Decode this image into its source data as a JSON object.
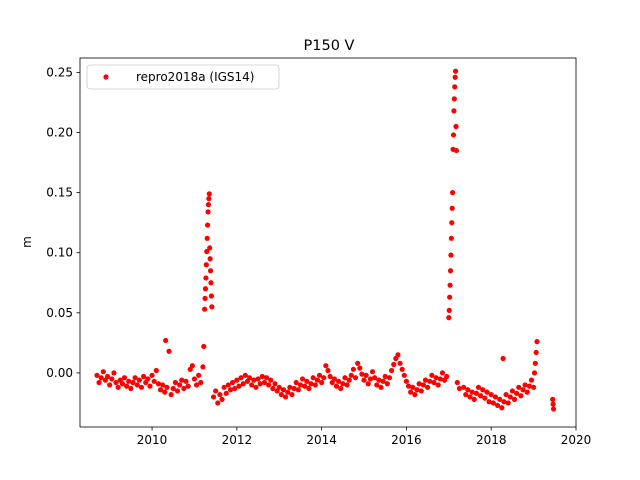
{
  "chart_data": {
    "type": "scatter",
    "title": "P150 V",
    "xlabel": "",
    "ylabel": "m",
    "xlim": [
      2008.3,
      2020.0
    ],
    "ylim": [
      -0.045,
      0.262
    ],
    "xticks": [
      2010,
      2012,
      2014,
      2016,
      2018,
      2020
    ],
    "yticks": [
      0.0,
      0.05,
      0.1,
      0.15,
      0.2,
      0.25
    ],
    "ytick_labels": [
      "0.00",
      "0.05",
      "0.10",
      "0.15",
      "0.20",
      "0.25"
    ],
    "grid": false,
    "legend": {
      "position": "upper-left"
    },
    "series": [
      {
        "name": "repro2018a (IGS14)",
        "color": "#ff0000",
        "marker": "circle",
        "points": [
          [
            2008.7,
            -0.002
          ],
          [
            2008.75,
            -0.008
          ],
          [
            2008.8,
            -0.004
          ],
          [
            2008.85,
            0.001
          ],
          [
            2008.9,
            -0.006
          ],
          [
            2008.95,
            -0.003
          ],
          [
            2009.0,
            -0.01
          ],
          [
            2009.05,
            -0.005
          ],
          [
            2009.1,
            0.0
          ],
          [
            2009.15,
            -0.008
          ],
          [
            2009.2,
            -0.012
          ],
          [
            2009.25,
            -0.006
          ],
          [
            2009.3,
            -0.009
          ],
          [
            2009.35,
            -0.004
          ],
          [
            2009.4,
            -0.011
          ],
          [
            2009.45,
            -0.007
          ],
          [
            2009.5,
            -0.013
          ],
          [
            2009.55,
            -0.008
          ],
          [
            2009.6,
            -0.004
          ],
          [
            2009.65,
            -0.01
          ],
          [
            2009.7,
            -0.006
          ],
          [
            2009.75,
            -0.012
          ],
          [
            2009.8,
            -0.003
          ],
          [
            2009.85,
            -0.008
          ],
          [
            2009.9,
            -0.005
          ],
          [
            2009.95,
            -0.011
          ],
          [
            2010.0,
            -0.002
          ],
          [
            2010.05,
            -0.007
          ],
          [
            2010.1,
            0.002
          ],
          [
            2010.15,
            -0.009
          ],
          [
            2010.2,
            -0.014
          ],
          [
            2010.25,
            -0.01
          ],
          [
            2010.3,
            -0.016
          ],
          [
            2010.32,
            0.027
          ],
          [
            2010.35,
            -0.012
          ],
          [
            2010.4,
            0.018
          ],
          [
            2010.45,
            -0.018
          ],
          [
            2010.5,
            -0.013
          ],
          [
            2010.55,
            -0.008
          ],
          [
            2010.6,
            -0.015
          ],
          [
            2010.65,
            -0.01
          ],
          [
            2010.7,
            -0.006
          ],
          [
            2010.75,
            -0.013
          ],
          [
            2010.8,
            -0.007
          ],
          [
            2010.85,
            -0.011
          ],
          [
            2010.9,
            0.003
          ],
          [
            2010.95,
            0.006
          ],
          [
            2011.0,
            -0.005
          ],
          [
            2011.05,
            -0.01
          ],
          [
            2011.1,
            -0.002
          ],
          [
            2011.15,
            -0.008
          ],
          [
            2011.2,
            0.005
          ],
          [
            2011.22,
            0.022
          ],
          [
            2011.24,
            0.053
          ],
          [
            2011.25,
            0.062
          ],
          [
            2011.26,
            0.07
          ],
          [
            2011.27,
            0.079
          ],
          [
            2011.28,
            0.09
          ],
          [
            2011.29,
            0.101
          ],
          [
            2011.3,
            0.112
          ],
          [
            2011.31,
            0.123
          ],
          [
            2011.32,
            0.134
          ],
          [
            2011.33,
            0.14
          ],
          [
            2011.34,
            0.145
          ],
          [
            2011.35,
            0.149
          ],
          [
            2011.36,
            0.104
          ],
          [
            2011.37,
            0.095
          ],
          [
            2011.38,
            0.085
          ],
          [
            2011.39,
            0.075
          ],
          [
            2011.4,
            0.064
          ],
          [
            2011.41,
            0.055
          ],
          [
            2011.45,
            -0.02
          ],
          [
            2011.5,
            -0.015
          ],
          [
            2011.55,
            -0.025
          ],
          [
            2011.6,
            -0.018
          ],
          [
            2011.65,
            -0.022
          ],
          [
            2011.7,
            -0.012
          ],
          [
            2011.75,
            -0.017
          ],
          [
            2011.8,
            -0.01
          ],
          [
            2011.85,
            -0.014
          ],
          [
            2011.9,
            -0.008
          ],
          [
            2011.95,
            -0.013
          ],
          [
            2012.0,
            -0.006
          ],
          [
            2012.05,
            -0.011
          ],
          [
            2012.1,
            -0.004
          ],
          [
            2012.15,
            -0.009
          ],
          [
            2012.2,
            -0.002
          ],
          [
            2012.25,
            -0.007
          ],
          [
            2012.3,
            -0.004
          ],
          [
            2012.35,
            -0.01
          ],
          [
            2012.4,
            -0.006
          ],
          [
            2012.45,
            -0.012
          ],
          [
            2012.5,
            -0.005
          ],
          [
            2012.55,
            -0.009
          ],
          [
            2012.6,
            -0.003
          ],
          [
            2012.65,
            -0.008
          ],
          [
            2012.7,
            -0.004
          ],
          [
            2012.75,
            -0.01
          ],
          [
            2012.8,
            -0.006
          ],
          [
            2012.85,
            -0.013
          ],
          [
            2012.9,
            -0.009
          ],
          [
            2012.95,
            -0.015
          ],
          [
            2013.0,
            -0.012
          ],
          [
            2013.05,
            -0.018
          ],
          [
            2013.1,
            -0.014
          ],
          [
            2013.15,
            -0.02
          ],
          [
            2013.2,
            -0.016
          ],
          [
            2013.25,
            -0.012
          ],
          [
            2013.3,
            -0.018
          ],
          [
            2013.35,
            -0.013
          ],
          [
            2013.4,
            -0.008
          ],
          [
            2013.45,
            -0.014
          ],
          [
            2013.5,
            -0.01
          ],
          [
            2013.55,
            -0.005
          ],
          [
            2013.6,
            -0.011
          ],
          [
            2013.65,
            -0.007
          ],
          [
            2013.7,
            -0.013
          ],
          [
            2013.75,
            -0.009
          ],
          [
            2013.8,
            -0.004
          ],
          [
            2013.85,
            -0.01
          ],
          [
            2013.9,
            -0.006
          ],
          [
            2013.95,
            -0.002
          ],
          [
            2014.0,
            -0.008
          ],
          [
            2014.05,
            -0.004
          ],
          [
            2014.1,
            0.006
          ],
          [
            2014.15,
            0.002
          ],
          [
            2014.2,
            -0.003
          ],
          [
            2014.25,
            -0.008
          ],
          [
            2014.3,
            -0.005
          ],
          [
            2014.35,
            -0.011
          ],
          [
            2014.4,
            -0.007
          ],
          [
            2014.45,
            -0.013
          ],
          [
            2014.5,
            -0.009
          ],
          [
            2014.55,
            -0.004
          ],
          [
            2014.6,
            -0.01
          ],
          [
            2014.65,
            -0.006
          ],
          [
            2014.7,
            -0.002
          ],
          [
            2014.75,
            0.003
          ],
          [
            2014.8,
            -0.004
          ],
          [
            2014.85,
            0.008
          ],
          [
            2014.9,
            0.004
          ],
          [
            2014.95,
            -0.001
          ],
          [
            2015.0,
            -0.006
          ],
          [
            2015.05,
            -0.002
          ],
          [
            2015.1,
            -0.009
          ],
          [
            2015.15,
            -0.005
          ],
          [
            2015.2,
            0.001
          ],
          [
            2015.25,
            -0.004
          ],
          [
            2015.3,
            -0.01
          ],
          [
            2015.35,
            -0.006
          ],
          [
            2015.4,
            -0.012
          ],
          [
            2015.45,
            -0.007
          ],
          [
            2015.5,
            -0.003
          ],
          [
            2015.55,
            -0.009
          ],
          [
            2015.6,
            -0.004
          ],
          [
            2015.65,
            0.002
          ],
          [
            2015.7,
            0.007
          ],
          [
            2015.75,
            0.012
          ],
          [
            2015.8,
            0.015
          ],
          [
            2015.85,
            0.008
          ],
          [
            2015.9,
            0.003
          ],
          [
            2015.95,
            -0.002
          ],
          [
            2016.0,
            -0.007
          ],
          [
            2016.05,
            -0.011
          ],
          [
            2016.1,
            -0.016
          ],
          [
            2016.15,
            -0.012
          ],
          [
            2016.2,
            -0.018
          ],
          [
            2016.25,
            -0.014
          ],
          [
            2016.3,
            -0.009
          ],
          [
            2016.35,
            -0.015
          ],
          [
            2016.4,
            -0.01
          ],
          [
            2016.45,
            -0.006
          ],
          [
            2016.5,
            -0.012
          ],
          [
            2016.55,
            -0.007
          ],
          [
            2016.6,
            -0.002
          ],
          [
            2016.65,
            -0.008
          ],
          [
            2016.7,
            -0.004
          ],
          [
            2016.75,
            -0.01
          ],
          [
            2016.8,
            -0.005
          ],
          [
            2016.85,
            0.0
          ],
          [
            2016.9,
            -0.006
          ],
          [
            2016.95,
            -0.003
          ],
          [
            2017.0,
            0.046
          ],
          [
            2017.01,
            0.052
          ],
          [
            2017.02,
            0.063
          ],
          [
            2017.03,
            0.073
          ],
          [
            2017.04,
            0.085
          ],
          [
            2017.05,
            0.098
          ],
          [
            2017.06,
            0.112
          ],
          [
            2017.07,
            0.125
          ],
          [
            2017.08,
            0.137
          ],
          [
            2017.09,
            0.15
          ],
          [
            2017.1,
            0.186
          ],
          [
            2017.11,
            0.198
          ],
          [
            2017.12,
            0.218
          ],
          [
            2017.13,
            0.228
          ],
          [
            2017.14,
            0.238
          ],
          [
            2017.15,
            0.246
          ],
          [
            2017.16,
            0.251
          ],
          [
            2017.17,
            0.205
          ],
          [
            2017.18,
            0.185
          ],
          [
            2017.2,
            -0.008
          ],
          [
            2017.25,
            -0.013
          ],
          [
            2017.35,
            -0.012
          ],
          [
            2017.4,
            -0.018
          ],
          [
            2017.45,
            -0.014
          ],
          [
            2017.5,
            -0.02
          ],
          [
            2017.55,
            -0.016
          ],
          [
            2017.6,
            -0.022
          ],
          [
            2017.65,
            -0.017
          ],
          [
            2017.7,
            -0.012
          ],
          [
            2017.75,
            -0.019
          ],
          [
            2017.8,
            -0.014
          ],
          [
            2017.85,
            -0.021
          ],
          [
            2017.9,
            -0.016
          ],
          [
            2017.95,
            -0.024
          ],
          [
            2018.0,
            -0.018
          ],
          [
            2018.05,
            -0.025
          ],
          [
            2018.1,
            -0.02
          ],
          [
            2018.15,
            -0.027
          ],
          [
            2018.2,
            -0.022
          ],
          [
            2018.25,
            -0.029
          ],
          [
            2018.28,
            0.012
          ],
          [
            2018.3,
            -0.024
          ],
          [
            2018.35,
            -0.018
          ],
          [
            2018.4,
            -0.025
          ],
          [
            2018.45,
            -0.02
          ],
          [
            2018.5,
            -0.015
          ],
          [
            2018.55,
            -0.022
          ],
          [
            2018.6,
            -0.017
          ],
          [
            2018.65,
            -0.012
          ],
          [
            2018.7,
            -0.019
          ],
          [
            2018.75,
            -0.014
          ],
          [
            2018.8,
            -0.01
          ],
          [
            2018.85,
            -0.016
          ],
          [
            2018.9,
            -0.011
          ],
          [
            2018.95,
            -0.006
          ],
          [
            2019.0,
            -0.012
          ],
          [
            2019.02,
            0.0
          ],
          [
            2019.04,
            0.008
          ],
          [
            2019.06,
            0.017
          ],
          [
            2019.08,
            0.026
          ],
          [
            2019.45,
            -0.022
          ],
          [
            2019.46,
            -0.026
          ],
          [
            2019.47,
            -0.03
          ]
        ]
      }
    ]
  }
}
